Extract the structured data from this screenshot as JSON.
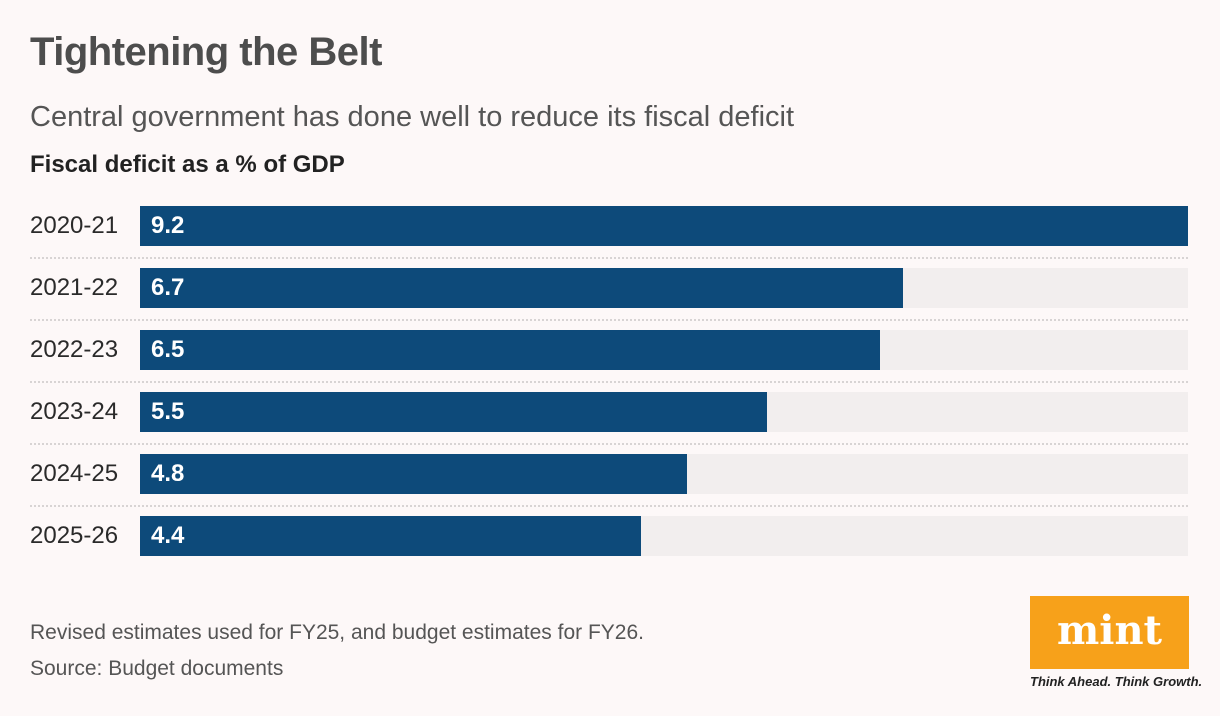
{
  "chart_data": {
    "type": "bar",
    "orientation": "horizontal",
    "title": "Tightening the Belt",
    "subtitle": "Central government has done well to reduce its fiscal deficit",
    "ylabel": "Fiscal deficit as a % of GDP",
    "categories": [
      "2020-21",
      "2021-22",
      "2022-23",
      "2023-24",
      "2024-25",
      "2025-26"
    ],
    "values": [
      9.2,
      6.7,
      6.5,
      5.5,
      4.8,
      4.4
    ],
    "xlim": [
      0,
      9.2
    ],
    "grid": false,
    "bar_color": "#0d4a7a",
    "track_color": "#f2eeee"
  },
  "footer": {
    "note": "Revised estimates used for FY25, and budget estimates for FY26.",
    "source": "Source: Budget documents"
  },
  "logo": {
    "text": "mint",
    "tagline": "Think Ahead. Think Growth.",
    "color": "#f7a11a"
  }
}
